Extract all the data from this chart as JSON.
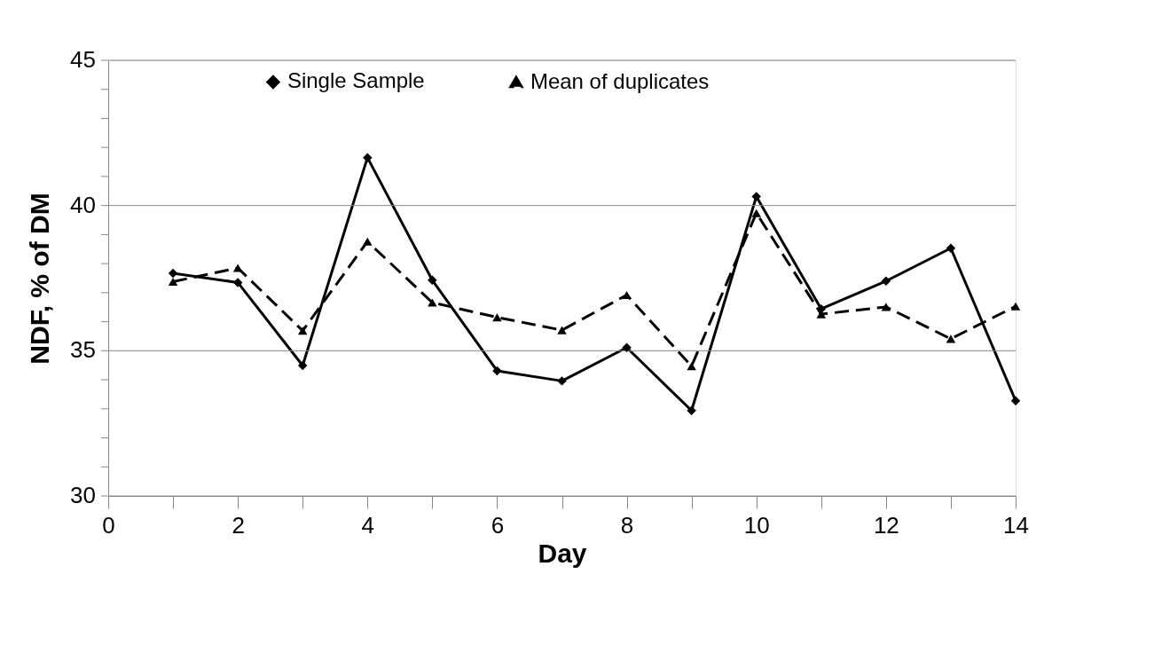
{
  "chart_data": {
    "type": "line",
    "xlabel": "Day",
    "ylabel": "NDF, % of DM",
    "x": [
      1,
      2,
      3,
      4,
      5,
      6,
      7,
      8,
      9,
      10,
      11,
      12,
      13,
      14
    ],
    "series": [
      {
        "name": "Single Sample",
        "color": "#000000",
        "marker": "diamond",
        "line_style": "solid",
        "values": [
          37.67,
          37.35,
          34.49,
          41.65,
          37.43,
          34.31,
          33.96,
          35.11,
          32.94,
          40.31,
          36.44,
          37.4,
          38.53,
          33.28
        ]
      },
      {
        "name": "Mean of duplicates",
        "color": "#000000",
        "marker": "triangle",
        "line_style": "dashed",
        "values": [
          37.38,
          37.85,
          35.69,
          38.76,
          36.66,
          36.15,
          35.71,
          36.92,
          34.47,
          39.74,
          36.26,
          36.51,
          35.41,
          36.53
        ]
      }
    ],
    "xlim": [
      0,
      14
    ],
    "xticks": [
      0,
      {
        "value": 1,
        "label": null
      },
      2,
      {
        "value": 3,
        "label": null
      },
      4,
      {
        "value": 5,
        "label": null
      },
      6,
      {
        "value": 7,
        "label": null
      },
      8,
      {
        "value": 9,
        "label": null
      },
      10,
      {
        "value": 11,
        "label": null
      },
      12,
      {
        "value": 13,
        "label": null
      },
      14
    ],
    "ylim": [
      30,
      45
    ],
    "yticks": [
      30,
      {
        "value": 31,
        "label": null
      },
      {
        "value": 32,
        "label": null
      },
      {
        "value": 33,
        "label": null
      },
      {
        "value": 34,
        "label": null
      },
      35,
      {
        "value": 36,
        "label": null
      },
      {
        "value": 37,
        "label": null
      },
      {
        "value": 38,
        "label": null
      },
      {
        "value": 39,
        "label": null
      },
      40,
      {
        "value": 41,
        "label": null
      },
      {
        "value": 42,
        "label": null
      },
      {
        "value": 43,
        "label": null
      },
      {
        "value": 44,
        "label": null
      },
      45
    ],
    "grid": "y",
    "legend": "top"
  }
}
